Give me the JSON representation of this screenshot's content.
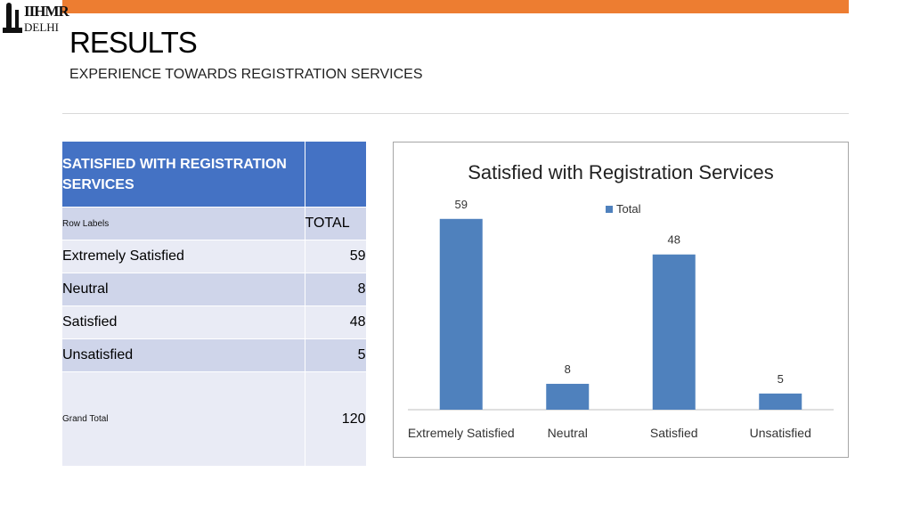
{
  "header": {
    "logo_line1": "IIHMR",
    "logo_line2": "DELHI",
    "title": "RESULTS",
    "subtitle": "EXPERIENCE TOWARDS REGISTRATION SERVICES",
    "accent_color": "#ed7d31"
  },
  "table": {
    "header": "SATISFIED WITH REGISTRATION SERVICES",
    "row_labels_label": "Row Labels",
    "total_label": "TOTAL",
    "rows": [
      {
        "label": "Extremely Satisfied",
        "value": "59"
      },
      {
        "label": "Neutral",
        "value": "8"
      },
      {
        "label": "Satisfied",
        "value": "48"
      },
      {
        "label": "Unsatisfied",
        "value": "5"
      }
    ],
    "grand_total_label": "Grand Total",
    "grand_total": "120"
  },
  "chart_data": {
    "type": "bar",
    "title": "Satisfied with Registration  Services",
    "categories": [
      "Extremely Satisfied",
      "Neutral",
      "Satisfied",
      "Unsatisfied"
    ],
    "series": [
      {
        "name": "Total",
        "values": [
          59,
          8,
          48,
          5
        ],
        "color": "#4f81bd"
      }
    ],
    "ylim": [
      0,
      65
    ],
    "grid": false,
    "legend": "top"
  }
}
